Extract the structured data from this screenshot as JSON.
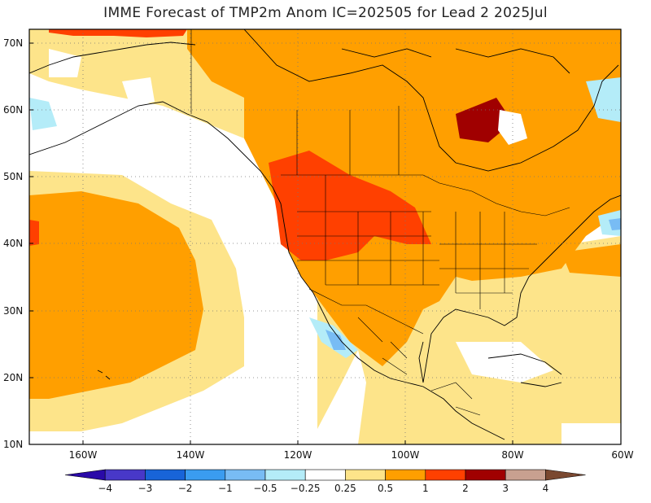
{
  "title": "IMME Forecast of TMP2m Anom IC=202505 for Lead 2 2025Jul",
  "map": {
    "lat_labels": [
      "70N",
      "60N",
      "50N",
      "40N",
      "30N",
      "20N",
      "10N"
    ],
    "lon_labels": [
      "160W",
      "140W",
      "120W",
      "100W",
      "80W",
      "60W"
    ],
    "extent": {
      "lon_min": -170,
      "lon_max": -60,
      "lat_min": 10,
      "lat_max": 72
    }
  },
  "colorbar": {
    "colors": [
      "#2a0aa8",
      "#4838c8",
      "#1864d8",
      "#3a9cf0",
      "#78bcf4",
      "#b4ecf8",
      "#ffffff",
      "#fde48a",
      "#ff9f00",
      "#ff4000",
      "#a00000",
      "#c8a090",
      "#7a4830"
    ],
    "ticks": [
      "−4",
      "−3",
      "−2",
      "−1",
      "−0.5",
      "−0.25",
      "0.25",
      "0.5",
      "1",
      "2",
      "3",
      "4"
    ]
  }
}
